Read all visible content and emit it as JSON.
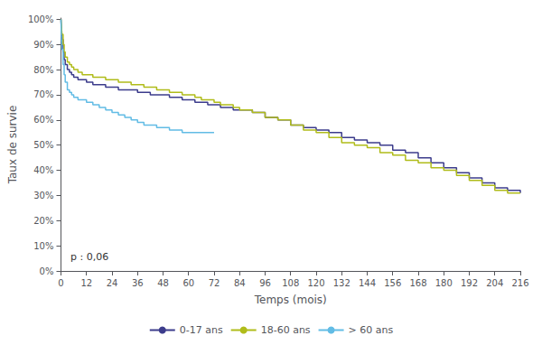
{
  "chart_data": {
    "type": "step",
    "xlabel": "Temps (mois)",
    "ylabel": "Taux de survie",
    "annotation": "p : 0,06",
    "xlim": [
      0,
      216
    ],
    "ylim": [
      0,
      1.005
    ],
    "xticks": [
      0,
      12,
      24,
      36,
      48,
      60,
      72,
      84,
      96,
      108,
      120,
      132,
      144,
      156,
      168,
      180,
      192,
      204,
      216
    ],
    "yticks": [
      {
        "value": 0,
        "label": "0%"
      },
      {
        "value": 0.1,
        "label": "10%"
      },
      {
        "value": 0.2,
        "label": "20%"
      },
      {
        "value": 0.3,
        "label": "30%"
      },
      {
        "value": 0.4,
        "label": "40%"
      },
      {
        "value": 0.5,
        "label": "50%"
      },
      {
        "value": 0.6,
        "label": "60%"
      },
      {
        "value": 0.7,
        "label": "70%"
      },
      {
        "value": 0.8,
        "label": "80%"
      },
      {
        "value": 0.9,
        "label": "90%"
      },
      {
        "value": 1.0,
        "label": "100%"
      }
    ],
    "grid": false,
    "legend": "bottom",
    "series": [
      {
        "name": "0-17 ans",
        "color": "#3c3c8c",
        "x": [
          0,
          0.2,
          0.5,
          1,
          1.5,
          2,
          3,
          4,
          5,
          6,
          8,
          10,
          12,
          15,
          18,
          21,
          24,
          27,
          30,
          33,
          36,
          39,
          42,
          45,
          48,
          51,
          54,
          57,
          60,
          63,
          66,
          69,
          72,
          75,
          78,
          81,
          84,
          90,
          96,
          102,
          108,
          114,
          120,
          126,
          132,
          138,
          144,
          150,
          156,
          162,
          168,
          174,
          180,
          186,
          192,
          198,
          204,
          210,
          216
        ],
        "values": [
          1.0,
          0.96,
          0.92,
          0.87,
          0.84,
          0.82,
          0.8,
          0.79,
          0.78,
          0.77,
          0.76,
          0.76,
          0.75,
          0.74,
          0.74,
          0.73,
          0.73,
          0.72,
          0.72,
          0.72,
          0.71,
          0.71,
          0.7,
          0.7,
          0.7,
          0.69,
          0.69,
          0.68,
          0.68,
          0.67,
          0.67,
          0.66,
          0.66,
          0.65,
          0.65,
          0.64,
          0.64,
          0.63,
          0.61,
          0.6,
          0.58,
          0.57,
          0.56,
          0.55,
          0.53,
          0.52,
          0.51,
          0.5,
          0.48,
          0.47,
          0.45,
          0.43,
          0.41,
          0.39,
          0.37,
          0.35,
          0.33,
          0.32,
          0.31
        ]
      },
      {
        "name": "18-60 ans",
        "color": "#b0bc1a",
        "x": [
          0,
          0.2,
          0.5,
          1,
          1.5,
          2,
          3,
          4,
          5,
          6,
          8,
          10,
          12,
          15,
          18,
          21,
          24,
          27,
          30,
          33,
          36,
          39,
          42,
          45,
          48,
          51,
          54,
          57,
          60,
          63,
          66,
          69,
          72,
          75,
          78,
          81,
          84,
          90,
          96,
          102,
          108,
          114,
          120,
          126,
          132,
          138,
          144,
          150,
          156,
          162,
          168,
          174,
          180,
          186,
          192,
          198,
          204,
          210,
          216
        ],
        "values": [
          1.0,
          0.97,
          0.94,
          0.9,
          0.87,
          0.85,
          0.83,
          0.82,
          0.81,
          0.8,
          0.79,
          0.78,
          0.78,
          0.77,
          0.77,
          0.76,
          0.76,
          0.75,
          0.75,
          0.74,
          0.74,
          0.73,
          0.73,
          0.72,
          0.72,
          0.71,
          0.71,
          0.7,
          0.7,
          0.69,
          0.68,
          0.68,
          0.67,
          0.66,
          0.66,
          0.65,
          0.64,
          0.63,
          0.61,
          0.6,
          0.58,
          0.56,
          0.55,
          0.53,
          0.51,
          0.5,
          0.49,
          0.47,
          0.46,
          0.44,
          0.43,
          0.41,
          0.4,
          0.38,
          0.36,
          0.34,
          0.32,
          0.31,
          0.31
        ]
      },
      {
        "name": "> 60 ans",
        "color": "#62bce5",
        "x": [
          0,
          0.2,
          0.5,
          1,
          1.5,
          2,
          3,
          4,
          5,
          6,
          8,
          10,
          12,
          15,
          18,
          21,
          24,
          27,
          30,
          33,
          36,
          39,
          42,
          45,
          48,
          51,
          54,
          57,
          60,
          63,
          66,
          69,
          72
        ],
        "values": [
          1.0,
          0.93,
          0.88,
          0.82,
          0.78,
          0.75,
          0.72,
          0.71,
          0.7,
          0.69,
          0.68,
          0.68,
          0.67,
          0.66,
          0.65,
          0.64,
          0.63,
          0.62,
          0.61,
          0.6,
          0.59,
          0.58,
          0.58,
          0.57,
          0.57,
          0.56,
          0.56,
          0.55,
          0.55,
          0.55,
          0.55,
          0.55,
          0.55
        ]
      }
    ]
  }
}
